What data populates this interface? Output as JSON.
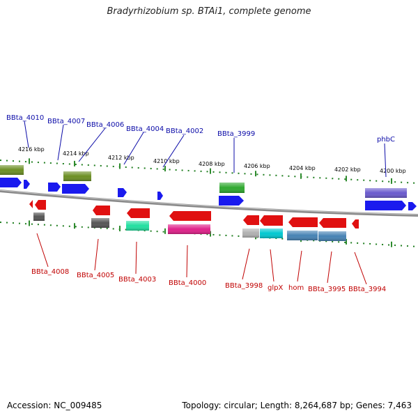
{
  "title": "Bradyrhizobium sp. BTAi1, complete genome",
  "footer": {
    "accession": "Accession: NC_009485",
    "summary": "Topology: circular; Length: 8,264,687 bp; Genes: 7,463"
  },
  "colors": {
    "backbone": "#8a8a8a",
    "tick_major": "#2e8b2e",
    "tick_dots": "#1e7d1e",
    "label_top": "#0b0ba8",
    "label_bottom": "#c00000"
  },
  "scale": {
    "tick_labels": [
      "4216 kbp",
      "4214 kbp",
      "4212 kbp",
      "4210 kbp",
      "4208 kbp",
      "4206 kbp",
      "4204 kbp",
      "4202 kbp",
      "4200 kbp"
    ]
  },
  "genes_top": [
    {
      "label": "BBta_4010",
      "color": "#1a1aee",
      "direction": "right"
    },
    {
      "label": "BBta_4007",
      "color": "#1a1aee",
      "direction": "right"
    },
    {
      "label": "BBta_4006",
      "color": "#6b8e23",
      "direction": "none"
    },
    {
      "label": "BBta_4004",
      "color": "#1a1aee",
      "direction": "right"
    },
    {
      "label": "BBta_4002",
      "color": "#1a1aee",
      "direction": "right"
    },
    {
      "label": "BBta_3999",
      "color": "#2ea82e",
      "direction": "none"
    },
    {
      "label": "phbC",
      "color": "#6a5acd",
      "direction": "none"
    }
  ],
  "genes_bottom": [
    {
      "label": "BBta_4008",
      "color": "#e01010",
      "direction": "left"
    },
    {
      "label": "BBta_4005",
      "color": "#e01010",
      "direction": "left"
    },
    {
      "label": "BBta_4003",
      "color": "#20e0a0",
      "direction": "none"
    },
    {
      "label": "BBta_4000",
      "color": "#e0208a",
      "direction": "none"
    },
    {
      "label": "BBta_3998",
      "color": "#e01010",
      "direction": "left"
    },
    {
      "label": "glpX",
      "color": "#00c8d0",
      "direction": "none"
    },
    {
      "label": "hom",
      "color": "#4682b4",
      "direction": "none"
    },
    {
      "label": "BBta_3995",
      "color": "#4682b4",
      "direction": "none"
    },
    {
      "label": "BBta_3994",
      "color": "#e01010",
      "direction": "left"
    }
  ]
}
